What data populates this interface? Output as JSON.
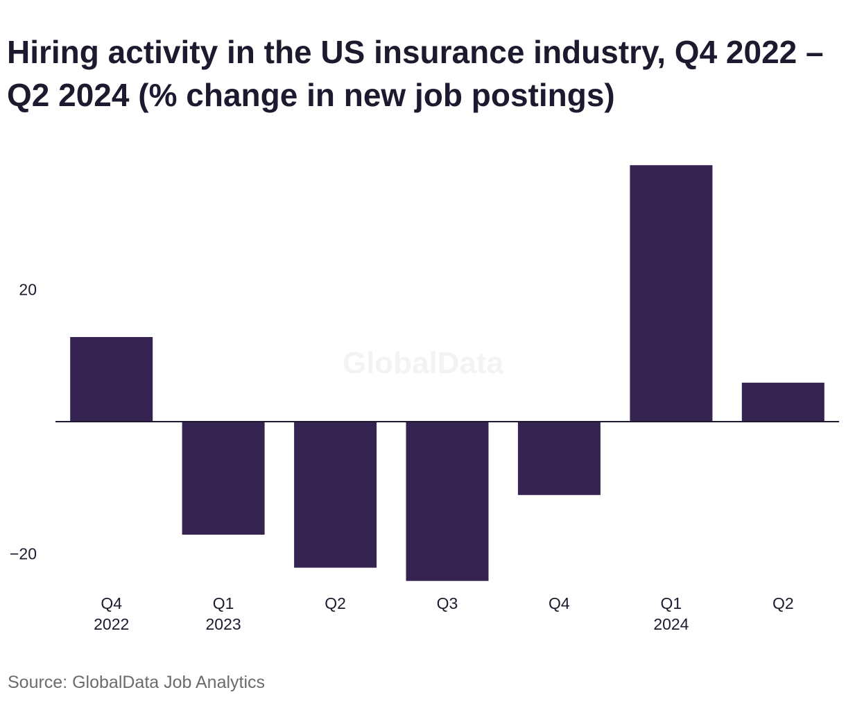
{
  "title": "Hiring activity in the US insurance industry, Q4 2022 – Q2 2024 (% change in new job postings)",
  "source": "Source: GlobalData Job Analytics",
  "watermark": "GlobalData",
  "colors": {
    "bar": "#352451",
    "text": "#1b1a2e",
    "axis": "#1b1a2e",
    "source": "#6b6b6b"
  },
  "chart_data": {
    "type": "bar",
    "categories": [
      [
        "Q4",
        "2022"
      ],
      [
        "Q1",
        "2023"
      ],
      [
        "Q2"
      ],
      [
        "Q3"
      ],
      [
        "Q4"
      ],
      [
        "Q1",
        "2024"
      ],
      [
        "Q2"
      ]
    ],
    "values": [
      12.8,
      -17.1,
      -22.1,
      -24.1,
      -11.1,
      38.8,
      5.9
    ],
    "yticks": [
      20,
      -20
    ],
    "ytick_labels": [
      "20",
      "−20"
    ],
    "ylim": [
      -24.1,
      38.8
    ],
    "title": "Hiring activity in the US insurance industry, Q4 2022 – Q2 2024 (% change in new job postings)",
    "xlabel": "",
    "ylabel": "",
    "grid": false,
    "legend": "none"
  }
}
